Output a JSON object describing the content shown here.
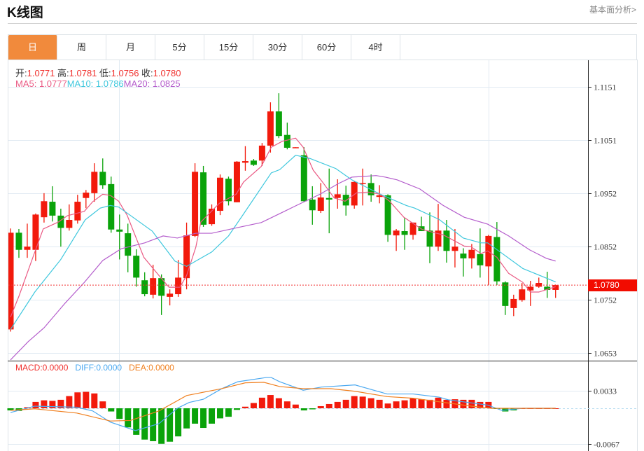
{
  "header": {
    "title": "K线图",
    "link": "基本面分析>"
  },
  "tabs": [
    {
      "label": "日",
      "active": true
    },
    {
      "label": "周"
    },
    {
      "label": "月"
    },
    {
      "label": "5分"
    },
    {
      "label": "15分"
    },
    {
      "label": "30分"
    },
    {
      "label": "60分"
    },
    {
      "label": "4时"
    }
  ],
  "ohlc_info": {
    "open_label": "开:",
    "open": "1.0771",
    "high_label": "高:",
    "high": "1.0781",
    "low_label": "低:",
    "low": "1.0756",
    "close_label": "收:",
    "close": "1.0780"
  },
  "ma_info": {
    "ma5": "MA5: 1.0777",
    "ma10": "MA10: 1.0786",
    "ma20": "MA20: 1.0825"
  },
  "macd_info": {
    "macd": "MACD:0.0000",
    "diff": "DIFF:0.0000",
    "dea": "DEA:0.0000"
  },
  "current_price": "1.0780",
  "colors": {
    "up": "#f21a0c",
    "down": "#0aa30a",
    "ma5": "#ea5a84",
    "ma10": "#3ec7dd",
    "ma20": "#b45dcc",
    "diff": "#4aa8f0",
    "dea": "#f08020",
    "accent": "#f18a3c"
  },
  "chart_data": [
    {
      "type": "candlestick",
      "title": "K线图",
      "y_ticks": [
        "1.1151",
        "1.1051",
        "1.0952",
        "1.0852",
        "1.0752",
        "1.0653"
      ],
      "ylim": [
        1.0653,
        1.1151
      ],
      "candles_ohlc": [
        [
          1.0697,
          1.0886,
          1.0693,
          1.0878
        ],
        [
          1.0878,
          1.0885,
          1.0831,
          1.0846
        ],
        [
          1.0846,
          1.0895,
          1.0831,
          1.0852
        ],
        [
          1.0846,
          1.0914,
          1.0825,
          1.0912
        ],
        [
          1.0907,
          1.0952,
          1.0897,
          1.0937
        ],
        [
          1.0936,
          1.0965,
          1.0899,
          1.091
        ],
        [
          1.091,
          1.0923,
          1.0852,
          1.0887
        ],
        [
          1.0887,
          1.0931,
          1.0882,
          1.0902
        ],
        [
          1.0901,
          1.0949,
          1.0895,
          1.0936
        ],
        [
          1.0943,
          1.0958,
          1.0924,
          1.0953
        ],
        [
          1.0952,
          1.1008,
          1.0936,
          1.0992
        ],
        [
          1.0992,
          1.1017,
          1.096,
          1.0967
        ],
        [
          1.0969,
          1.0983,
          1.0878,
          1.0884
        ],
        [
          1.0884,
          1.0912,
          1.0828,
          1.088
        ],
        [
          1.0877,
          1.0895,
          1.0804,
          1.0835
        ],
        [
          1.0835,
          1.0847,
          1.0777,
          1.0794
        ],
        [
          1.0789,
          1.0804,
          1.0759,
          1.0763
        ],
        [
          1.0762,
          1.0818,
          1.0755,
          1.0793
        ],
        [
          1.0793,
          1.08,
          1.0724,
          1.076
        ],
        [
          1.0758,
          1.0772,
          1.0742,
          1.0764
        ],
        [
          1.0763,
          1.0827,
          1.0758,
          1.0794
        ],
        [
          1.0793,
          1.0897,
          1.0772,
          1.0873
        ],
        [
          1.0872,
          1.1008,
          1.087,
          1.0992
        ],
        [
          1.0991,
          1.1003,
          1.0889,
          1.0893
        ],
        [
          1.0894,
          1.0931,
          1.0891,
          1.0923
        ],
        [
          1.0919,
          1.0987,
          1.0911,
          1.0981
        ],
        [
          1.0979,
          1.0983,
          1.0929,
          1.0937
        ],
        [
          1.0935,
          1.1012,
          1.0935,
          1.1011
        ],
        [
          1.1009,
          1.104,
          1.0994,
          1.1012
        ],
        [
          1.1013,
          1.1016,
          1.1003,
          1.1005
        ],
        [
          1.1013,
          1.1046,
          1.1003,
          1.1041
        ],
        [
          1.1041,
          1.1122,
          1.1028,
          1.1105
        ],
        [
          1.1105,
          1.1139,
          1.1055,
          1.1059
        ],
        [
          1.1061,
          1.1084,
          1.1034,
          1.1037
        ],
        [
          1.1037,
          1.1038,
          1.1037,
          1.1038
        ],
        [
          1.1023,
          1.1038,
          1.0936,
          1.0937
        ],
        [
          1.094,
          1.0965,
          1.0893,
          1.092
        ],
        [
          1.0919,
          1.0971,
          1.0915,
          1.0944
        ],
        [
          1.0943,
          1.0998,
          1.0877,
          1.094
        ],
        [
          1.0943,
          1.0978,
          1.0923,
          1.095
        ],
        [
          1.0949,
          1.0966,
          1.091,
          1.0929
        ],
        [
          1.0929,
          1.0975,
          1.0923,
          1.0973
        ],
        [
          1.097,
          1.0998,
          1.0929,
          1.0971
        ],
        [
          1.0971,
          1.0987,
          1.0936,
          1.0948
        ],
        [
          1.0945,
          1.0967,
          1.0933,
          1.0948
        ],
        [
          1.0948,
          1.095,
          1.0861,
          1.0874
        ],
        [
          1.0873,
          1.0885,
          1.0844,
          1.0882
        ],
        [
          1.0881,
          1.0906,
          1.0846,
          1.0874
        ],
        [
          1.0874,
          1.0897,
          1.0865,
          1.0897
        ],
        [
          1.089,
          1.0908,
          1.0881,
          1.0881
        ],
        [
          1.0882,
          1.0916,
          1.0821,
          1.0852
        ],
        [
          1.0852,
          1.0932,
          1.0844,
          1.0882
        ],
        [
          1.0882,
          1.0902,
          1.0822,
          1.0844
        ],
        [
          1.0844,
          1.0885,
          1.0813,
          1.0852
        ],
        [
          1.0839,
          1.0849,
          1.0796,
          1.083
        ],
        [
          1.083,
          1.0857,
          1.0811,
          1.0846
        ],
        [
          1.0838,
          1.0886,
          1.0794,
          1.0817
        ],
        [
          1.0815,
          1.0874,
          1.078,
          1.0872
        ],
        [
          1.087,
          1.0898,
          1.078,
          1.0787
        ],
        [
          1.0785,
          1.0787,
          1.0724,
          1.0741
        ],
        [
          1.0737,
          1.0762,
          1.0722,
          1.0754
        ],
        [
          1.0752,
          1.0784,
          1.0749,
          1.0772
        ],
        [
          1.077,
          1.0788,
          1.0741,
          1.0777
        ],
        [
          1.0777,
          1.0794,
          1.0775,
          1.0784
        ],
        [
          1.0777,
          1.0805,
          1.0756,
          1.0771
        ],
        [
          1.0771,
          1.0781,
          1.0756,
          1.078
        ]
      ],
      "ma_series": [
        {
          "name": "MA5",
          "points": [
            [
              0,
              1.072
            ],
            [
              1.0,
              1.0759
            ],
            [
              2.9,
              1.0842
            ],
            [
              3.9,
              1.0885
            ],
            [
              5.7,
              1.0898
            ],
            [
              6.8,
              1.091
            ],
            [
              8.8,
              1.0918
            ],
            [
              9.8,
              1.0936
            ],
            [
              11.0,
              1.095
            ],
            [
              11.9,
              1.0948
            ],
            [
              12.9,
              1.0937
            ],
            [
              13.9,
              1.0911
            ],
            [
              15.9,
              1.0832
            ],
            [
              17.7,
              1.0798
            ],
            [
              18.9,
              1.0776
            ],
            [
              20.2,
              1.0776
            ],
            [
              21.0,
              1.0798
            ],
            [
              22.1,
              1.0851
            ],
            [
              22.7,
              1.0898
            ],
            [
              24.9,
              1.0933
            ],
            [
              26.9,
              1.095
            ],
            [
              27.8,
              1.0973
            ],
            [
              29.9,
              1.1002
            ],
            [
              31.1,
              1.1038
            ],
            [
              32.4,
              1.1049
            ],
            [
              34.0,
              1.1055
            ],
            [
              34.9,
              1.1038
            ],
            [
              36.1,
              1.0995
            ],
            [
              37.2,
              1.0973
            ],
            [
              38.6,
              1.0943
            ],
            [
              39.9,
              1.0937
            ],
            [
              41.3,
              1.0953
            ],
            [
              42.7,
              1.0954
            ],
            [
              44.1,
              1.095
            ],
            [
              45.2,
              1.0937
            ],
            [
              46.9,
              1.0907
            ],
            [
              49.1,
              1.0884
            ],
            [
              50.8,
              1.0877
            ],
            [
              51.6,
              1.0874
            ],
            [
              54.1,
              1.0853
            ],
            [
              54.9,
              1.0852
            ],
            [
              56.1,
              1.0839
            ],
            [
              56.9,
              1.0844
            ],
            [
              58.0,
              1.0832
            ],
            [
              59.4,
              1.0802
            ],
            [
              61.1,
              1.0785
            ],
            [
              62.0,
              1.0767
            ],
            [
              63.0,
              1.0767
            ],
            [
              65,
              1.0777
            ]
          ]
        },
        {
          "name": "MA10",
          "points": [
            [
              0,
              1.0697
            ],
            [
              2.9,
              1.0767
            ],
            [
              6.0,
              1.0828
            ],
            [
              8.9,
              1.0902
            ],
            [
              10.7,
              1.0924
            ],
            [
              11.9,
              1.0929
            ],
            [
              12.9,
              1.0926
            ],
            [
              13.8,
              1.0916
            ],
            [
              16.9,
              1.0881
            ],
            [
              19.6,
              1.0825
            ],
            [
              21.0,
              1.0815
            ],
            [
              22.1,
              1.0825
            ],
            [
              24.0,
              1.0842
            ],
            [
              26.0,
              1.0872
            ],
            [
              27.7,
              1.0911
            ],
            [
              31.1,
              1.099
            ],
            [
              32.1,
              1.0996
            ],
            [
              34.0,
              1.1023
            ],
            [
              35.7,
              1.1017
            ],
            [
              38.8,
              1.0998
            ],
            [
              40.7,
              1.0977
            ],
            [
              44.1,
              1.095
            ],
            [
              47.2,
              1.0929
            ],
            [
              48.2,
              1.0924
            ],
            [
              51.1,
              1.0903
            ],
            [
              54.0,
              1.0868
            ],
            [
              56.1,
              1.0859
            ],
            [
              56.9,
              1.0859
            ],
            [
              61.1,
              1.0811
            ],
            [
              65,
              1.0786
            ]
          ]
        },
        {
          "name": "MA20",
          "points": [
            [
              0,
              1.064
            ],
            [
              2.1,
              1.0674
            ],
            [
              4.0,
              1.07
            ],
            [
              6.5,
              1.0746
            ],
            [
              8.8,
              1.0785
            ],
            [
              11.0,
              1.0826
            ],
            [
              13.2,
              1.0848
            ],
            [
              16.0,
              1.0859
            ],
            [
              18.2,
              1.0872
            ],
            [
              19.9,
              1.0868
            ],
            [
              22.1,
              1.0877
            ],
            [
              24.0,
              1.0877
            ],
            [
              26.9,
              1.0887
            ],
            [
              29.9,
              1.0897
            ],
            [
              32.4,
              1.0916
            ],
            [
              34.1,
              1.0929
            ],
            [
              36.9,
              1.095
            ],
            [
              39.1,
              1.097
            ],
            [
              40.7,
              1.0982
            ],
            [
              43.6,
              1.0985
            ],
            [
              44.7,
              1.0982
            ],
            [
              46.1,
              1.0977
            ],
            [
              48.8,
              1.096
            ],
            [
              51.6,
              1.0929
            ],
            [
              54.1,
              1.0907
            ],
            [
              56.9,
              1.0894
            ],
            [
              59.4,
              1.0872
            ],
            [
              61.9,
              1.0846
            ],
            [
              63.9,
              1.083
            ],
            [
              65,
              1.0825
            ]
          ]
        }
      ]
    },
    {
      "type": "bar+line",
      "title": "MACD",
      "y_ticks": [
        "0.0033",
        "-0.0067"
      ],
      "macd_hist": [
        -0.0004,
        -0.0005,
        0.0002,
        0.0012,
        0.0015,
        0.0014,
        0.0016,
        0.0023,
        0.003,
        0.0031,
        0.0028,
        0.0013,
        -0.0006,
        -0.002,
        -0.0036,
        -0.005,
        -0.0059,
        -0.0062,
        -0.0067,
        -0.0063,
        -0.0053,
        -0.0038,
        -0.0029,
        -0.0037,
        -0.0029,
        -0.0019,
        -0.0016,
        -0.0003,
        0.0003,
        0.001,
        0.002,
        0.0025,
        0.0019,
        0.0013,
        0.0007,
        -0.0004,
        -0.0002,
        0.0004,
        0.0008,
        0.0012,
        0.0016,
        0.0023,
        0.0022,
        0.0019,
        0.0016,
        0.0009,
        0.0013,
        0.0015,
        0.0019,
        0.0017,
        0.0016,
        0.002,
        0.0016,
        0.0017,
        0.0016,
        0.0016,
        0.0012,
        0.0012,
        -0.0001,
        -0.0006,
        -0.0004,
        0,
        0,
        0,
        0,
        0
      ],
      "diff": [
        [
          0,
          -0.0008
        ],
        [
          2.9,
          0.0004
        ],
        [
          7.9,
          0.0002
        ],
        [
          9.8,
          -0.0005
        ],
        [
          11.9,
          -0.0026
        ],
        [
          14.9,
          -0.0042
        ],
        [
          17.7,
          -0.0029
        ],
        [
          19.9,
          0
        ],
        [
          21.3,
          0.0011
        ],
        [
          23,
          0.0017
        ],
        [
          25.2,
          0.0037
        ],
        [
          27.1,
          0.005
        ],
        [
          30.5,
          0.0058
        ],
        [
          31.1,
          0.0058
        ],
        [
          32.1,
          0.005
        ],
        [
          34.9,
          0.0034
        ],
        [
          37.1,
          0.004
        ],
        [
          41.1,
          0.0044
        ],
        [
          44.9,
          0.0027
        ],
        [
          48,
          0.0027
        ],
        [
          51.1,
          0.0021
        ],
        [
          52.2,
          0.0016
        ],
        [
          56.9,
          0.0006
        ],
        [
          58.6,
          -0.0004
        ],
        [
          61.1,
          0
        ],
        [
          65,
          0
        ]
      ],
      "dea": [
        [
          0,
          -0.0004
        ],
        [
          2.9,
          -0.0001
        ],
        [
          7.9,
          -0.0009
        ],
        [
          11.9,
          -0.0024
        ],
        [
          14.3,
          -0.0023
        ],
        [
          17.7,
          -0.0005
        ],
        [
          21,
          0.0024
        ],
        [
          25.2,
          0.0037
        ],
        [
          28,
          0.0048
        ],
        [
          30.2,
          0.0049
        ],
        [
          32.1,
          0.0041
        ],
        [
          34.9,
          0.0037
        ],
        [
          38.2,
          0.0037
        ],
        [
          41.1,
          0.0032
        ],
        [
          44.9,
          0.0022
        ],
        [
          48,
          0.0019
        ],
        [
          51.7,
          0.0011
        ],
        [
          55,
          0.0004
        ],
        [
          57.3,
          0
        ],
        [
          65,
          0
        ]
      ]
    }
  ]
}
